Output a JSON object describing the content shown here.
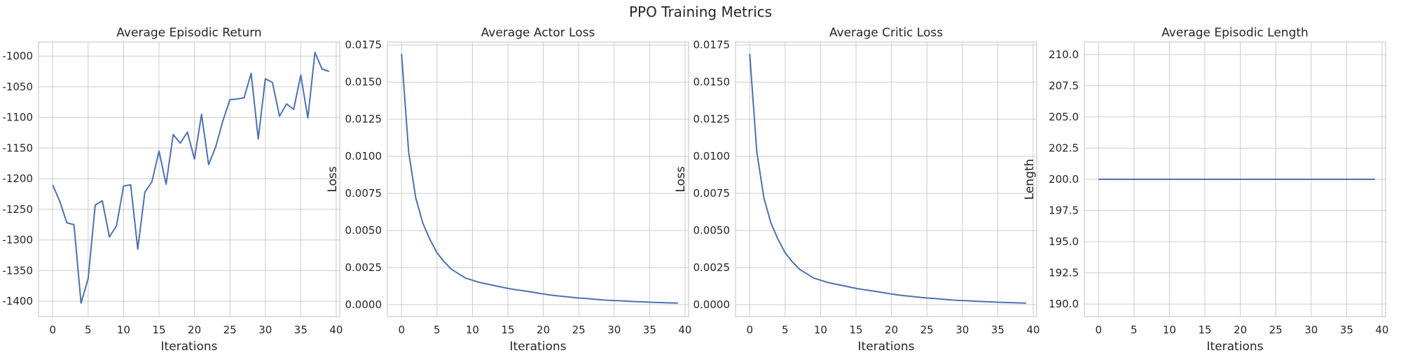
{
  "figure": {
    "title": "PPO Training Metrics"
  },
  "colors": {
    "line": "#4c72b0",
    "grid": "#cccccc",
    "axis_edge": "#cccccc",
    "text": "#262626"
  },
  "chart_data": [
    {
      "type": "line",
      "title": "Average Episodic Return",
      "xlabel": "Iterations",
      "ylabel": "",
      "xlim": [
        -2,
        40.5
      ],
      "ylim": [
        -1425,
        -977
      ],
      "xticks": [
        0,
        5,
        10,
        15,
        20,
        25,
        30,
        35,
        40
      ],
      "yticks": [
        -1400,
        -1350,
        -1300,
        -1250,
        -1200,
        -1150,
        -1100,
        -1050,
        -1000
      ],
      "ytick_labels": [
        "-1400",
        "-1350",
        "-1300",
        "-1250",
        "-1200",
        "-1150",
        "-1100",
        "-1050",
        "-1000"
      ],
      "grid": true,
      "x": [
        0,
        1,
        2,
        3,
        4,
        5,
        6,
        7,
        8,
        9,
        10,
        11,
        12,
        13,
        14,
        15,
        16,
        17,
        18,
        19,
        20,
        21,
        22,
        23,
        24,
        25,
        26,
        27,
        28,
        29,
        30,
        31,
        32,
        33,
        34,
        35,
        36,
        37,
        38,
        39
      ],
      "series": [
        {
          "values": [
            -1210,
            -1237,
            -1272,
            -1275,
            -1403,
            -1363,
            -1243,
            -1236,
            -1295,
            -1277,
            -1212,
            -1210,
            -1315,
            -1222,
            -1205,
            -1155,
            -1209,
            -1128,
            -1142,
            -1124,
            -1168,
            -1095,
            -1177,
            -1148,
            -1106,
            -1071,
            -1070,
            -1068,
            -1028,
            -1135,
            -1037,
            -1043,
            -1098,
            -1078,
            -1087,
            -1031,
            -1101,
            -994,
            -1021,
            -1025
          ]
        }
      ]
    },
    {
      "type": "line",
      "title": "Average Actor Loss",
      "xlabel": "Iterations",
      "ylabel": "Loss",
      "xlim": [
        -2,
        40.5
      ],
      "ylim": [
        -0.0008,
        0.0177
      ],
      "xticks": [
        0,
        5,
        10,
        15,
        20,
        25,
        30,
        35,
        40
      ],
      "yticks": [
        0,
        0.0025,
        0.005,
        0.0075,
        0.01,
        0.0125,
        0.015,
        0.0175
      ],
      "ytick_labels": [
        "0.0000",
        "0.0025",
        "0.0050",
        "0.0075",
        "0.0100",
        "0.0125",
        "0.0150",
        "0.0175"
      ],
      "grid": true,
      "x": [
        0,
        1,
        2,
        3,
        4,
        5,
        6,
        7,
        8,
        9,
        10,
        11,
        12,
        13,
        14,
        15,
        16,
        17,
        18,
        19,
        20,
        21,
        22,
        23,
        24,
        25,
        26,
        27,
        28,
        29,
        30,
        31,
        32,
        33,
        34,
        35,
        36,
        37,
        38,
        39
      ],
      "series": [
        {
          "values": [
            0.0169,
            0.0103,
            0.0072,
            0.0055,
            0.0044,
            0.0035,
            0.0029,
            0.0024,
            0.0021,
            0.0018,
            0.00165,
            0.0015,
            0.0014,
            0.0013,
            0.0012,
            0.0011,
            0.00102,
            0.00095,
            0.00088,
            0.0008,
            0.00072,
            0.00065,
            0.0006,
            0.00055,
            0.0005,
            0.00045,
            0.00042,
            0.00038,
            0.00034,
            0.0003,
            0.00028,
            0.00026,
            0.00023,
            0.00021,
            0.00019,
            0.00017,
            0.00015,
            0.00014,
            0.00012,
            0.00011
          ]
        }
      ]
    },
    {
      "type": "line",
      "title": "Average Critic Loss",
      "xlabel": "Iterations",
      "ylabel": "Loss",
      "xlim": [
        -2,
        40.5
      ],
      "ylim": [
        -0.0008,
        0.0177
      ],
      "xticks": [
        0,
        5,
        10,
        15,
        20,
        25,
        30,
        35,
        40
      ],
      "yticks": [
        0,
        0.0025,
        0.005,
        0.0075,
        0.01,
        0.0125,
        0.015,
        0.0175
      ],
      "ytick_labels": [
        "0.0000",
        "0.0025",
        "0.0050",
        "0.0075",
        "0.0100",
        "0.0125",
        "0.0150",
        "0.0175"
      ],
      "grid": true,
      "x": [
        0,
        1,
        2,
        3,
        4,
        5,
        6,
        7,
        8,
        9,
        10,
        11,
        12,
        13,
        14,
        15,
        16,
        17,
        18,
        19,
        20,
        21,
        22,
        23,
        24,
        25,
        26,
        27,
        28,
        29,
        30,
        31,
        32,
        33,
        34,
        35,
        36,
        37,
        38,
        39
      ],
      "series": [
        {
          "values": [
            0.0169,
            0.0103,
            0.0072,
            0.0055,
            0.0044,
            0.0035,
            0.0029,
            0.0024,
            0.0021,
            0.0018,
            0.00165,
            0.0015,
            0.0014,
            0.0013,
            0.0012,
            0.0011,
            0.00102,
            0.00095,
            0.00088,
            0.0008,
            0.00072,
            0.00065,
            0.0006,
            0.00055,
            0.0005,
            0.00045,
            0.00042,
            0.00038,
            0.00034,
            0.0003,
            0.00028,
            0.00026,
            0.00023,
            0.00021,
            0.00019,
            0.00017,
            0.00015,
            0.00014,
            0.00012,
            0.00011
          ]
        }
      ]
    },
    {
      "type": "line",
      "title": "Average Episodic Length",
      "xlabel": "Iterations",
      "ylabel": "Length",
      "xlim": [
        -2,
        40.5
      ],
      "ylim": [
        189,
        211
      ],
      "xticks": [
        0,
        5,
        10,
        15,
        20,
        25,
        30,
        35,
        40
      ],
      "yticks": [
        190,
        192.5,
        195,
        197.5,
        200,
        202.5,
        205,
        207.5,
        210
      ],
      "ytick_labels": [
        "190.0",
        "192.5",
        "195.0",
        "197.5",
        "200.0",
        "202.5",
        "205.0",
        "207.5",
        "210.0"
      ],
      "grid": true,
      "x": [
        0,
        1,
        2,
        3,
        4,
        5,
        6,
        7,
        8,
        9,
        10,
        11,
        12,
        13,
        14,
        15,
        16,
        17,
        18,
        19,
        20,
        21,
        22,
        23,
        24,
        25,
        26,
        27,
        28,
        29,
        30,
        31,
        32,
        33,
        34,
        35,
        36,
        37,
        38,
        39
      ],
      "series": [
        {
          "values": [
            200,
            200,
            200,
            200,
            200,
            200,
            200,
            200,
            200,
            200,
            200,
            200,
            200,
            200,
            200,
            200,
            200,
            200,
            200,
            200,
            200,
            200,
            200,
            200,
            200,
            200,
            200,
            200,
            200,
            200,
            200,
            200,
            200,
            200,
            200,
            200,
            200,
            200,
            200,
            200
          ]
        }
      ]
    }
  ]
}
